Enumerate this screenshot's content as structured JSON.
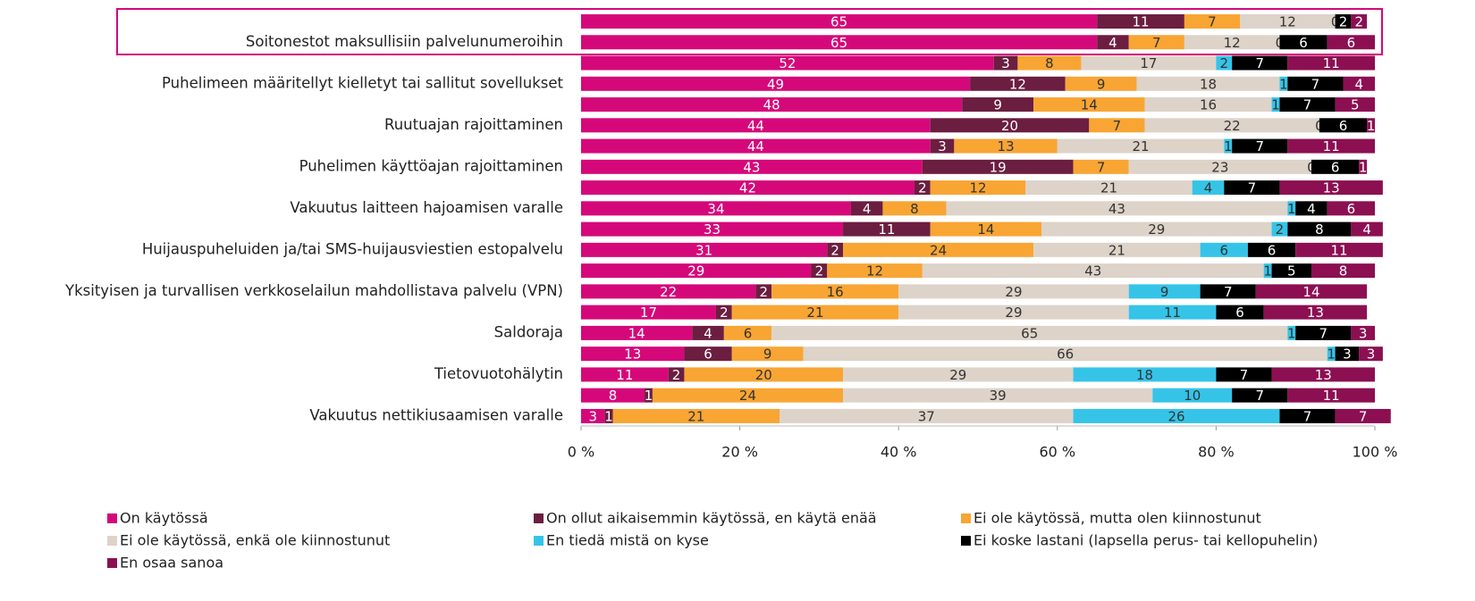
{
  "chart_data": {
    "type": "bar",
    "orientation": "horizontal",
    "stacked": true,
    "categories": [
      null,
      "Soitonestot maksullisiin palvelunumeroihin",
      null,
      "Puhelimeen määritellyt kielletyt tai sallitut sovellukset",
      null,
      "Ruutuajan rajoittaminen",
      null,
      "Puhelimen käyttöajan rajoittaminen",
      null,
      "Vakuutus laitteen hajoamisen varalle",
      null,
      "Huijauspuheluiden ja/tai SMS-huijausviestien estopalvelu",
      null,
      "Yksityisen ja turvallisen verkkoselailun mahdollistava palvelu (VPN)",
      null,
      "Saldoraja",
      null,
      "Tietovuotohälytin",
      null,
      "Vakuutus nettikiusaamisen varalle"
    ],
    "series": [
      {
        "name": "On käytössä",
        "color": "#d5087a",
        "values": [
          65,
          65,
          52,
          49,
          48,
          44,
          44,
          43,
          42,
          34,
          33,
          31,
          29,
          22,
          17,
          14,
          13,
          11,
          8,
          3
        ]
      },
      {
        "name": "On ollut aikaisemmin käytössä, en käytä enää",
        "color": "#6b1e40",
        "values": [
          11,
          4,
          3,
          12,
          9,
          20,
          3,
          19,
          2,
          4,
          11,
          2,
          2,
          2,
          2,
          4,
          6,
          2,
          1,
          1
        ]
      },
      {
        "name": "Ei ole käytössä, mutta olen kiinnostunut",
        "color": "#f8a534",
        "values": [
          7,
          7,
          8,
          9,
          14,
          7,
          13,
          7,
          12,
          8,
          14,
          24,
          12,
          16,
          21,
          6,
          9,
          20,
          24,
          21
        ]
      },
      {
        "name": "Ei ole käytössä, enkä ole kiinnostunut",
        "color": "#ddd3c9",
        "values": [
          12,
          12,
          17,
          18,
          16,
          22,
          21,
          23,
          21,
          43,
          29,
          21,
          43,
          29,
          29,
          65,
          66,
          29,
          39,
          37
        ]
      },
      {
        "name": "En tiedä mistä on kyse",
        "color": "#35c4e8",
        "values": [
          0,
          0,
          2,
          1,
          1,
          0,
          1,
          0,
          4,
          1,
          2,
          6,
          1,
          9,
          11,
          1,
          1,
          18,
          10,
          26
        ]
      },
      {
        "name": "Ei koske lastani (lapsella perus- tai kellopuhelin)",
        "color": "#000000",
        "values": [
          2,
          6,
          7,
          7,
          7,
          6,
          7,
          6,
          7,
          4,
          8,
          6,
          5,
          7,
          6,
          7,
          3,
          7,
          7,
          7
        ]
      },
      {
        "name": "En osaa sanoa",
        "color": "#8c0f52",
        "values": [
          2,
          6,
          11,
          4,
          5,
          1,
          11,
          1,
          13,
          6,
          4,
          11,
          8,
          14,
          13,
          3,
          3,
          13,
          11,
          7
        ]
      }
    ],
    "xlim": [
      0,
      100
    ],
    "xticks": [
      {
        "value": 0,
        "label": "0 %"
      },
      {
        "value": 20,
        "label": "20 %"
      },
      {
        "value": 40,
        "label": "40 %"
      },
      {
        "value": 60,
        "label": "60 %"
      },
      {
        "value": 80,
        "label": "80 %"
      },
      {
        "value": 100,
        "label": "100 %"
      }
    ],
    "legend": "bottom"
  }
}
